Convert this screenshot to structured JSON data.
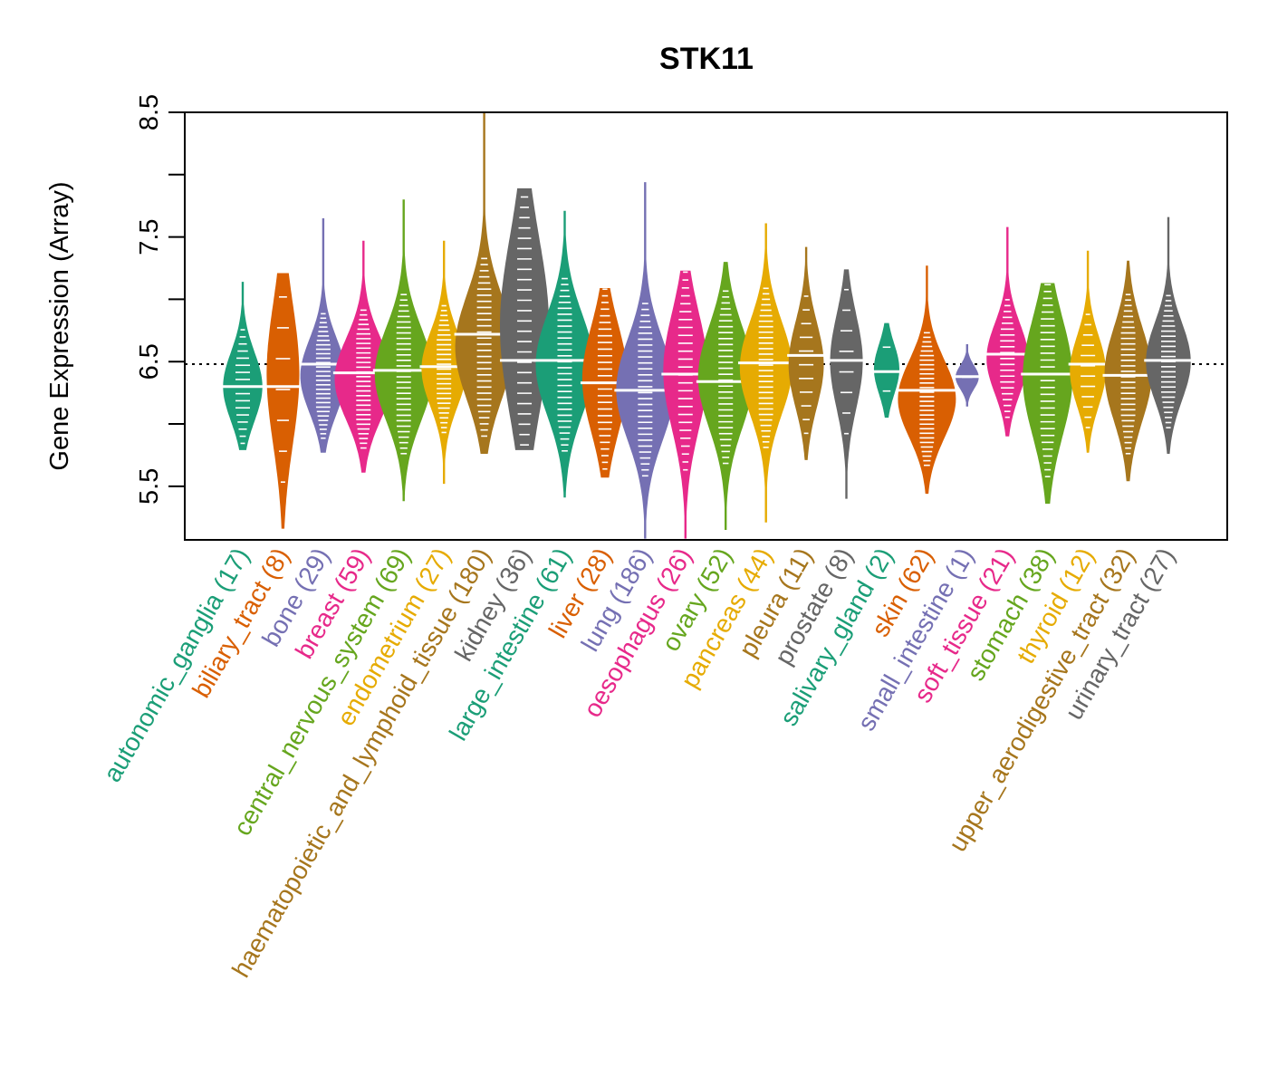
{
  "chart_data": {
    "type": "violin",
    "title": "STK11",
    "xlabel": "",
    "ylabel": "Gene Expression (Array)",
    "ylim": [
      5.07,
      8.5
    ],
    "yticks": [
      5.5,
      6.0,
      6.5,
      7.0,
      7.5,
      8.0,
      8.5
    ],
    "ytick_labels": [
      "5.5",
      "",
      "6.5",
      "",
      "7.5",
      "",
      "8.5"
    ],
    "reference_line": 6.48,
    "grid": false,
    "legend": "none",
    "groups": [
      {
        "name": "autonomic_ganglia",
        "n": 17,
        "label": "autonomic_ganglia (17)",
        "color": "#1B9E77",
        "min": 5.79,
        "max": 7.14,
        "median": 6.3,
        "q1": 6.08,
        "q3": 6.52
      },
      {
        "name": "biliary_tract",
        "n": 8,
        "label": "biliary_tract (8)",
        "color": "#D95F02",
        "min": 5.16,
        "max": 7.21,
        "median": 6.3,
        "q1": 5.95,
        "q3": 6.85
      },
      {
        "name": "bone",
        "n": 29,
        "label": "bone (29)",
        "color": "#7570B3",
        "min": 5.77,
        "max": 7.65,
        "median": 6.48,
        "q1": 6.15,
        "q3": 6.62
      },
      {
        "name": "breast",
        "n": 59,
        "label": "breast (59)",
        "color": "#E7298A",
        "min": 5.61,
        "max": 7.47,
        "median": 6.41,
        "q1": 6.1,
        "q3": 6.62
      },
      {
        "name": "central_nervous_system",
        "n": 69,
        "label": "central_nervous_system (69)",
        "color": "#66A61E",
        "min": 5.38,
        "max": 7.8,
        "median": 6.43,
        "q1": 6.1,
        "q3": 6.7
      },
      {
        "name": "endometrium",
        "n": 27,
        "label": "endometrium (27)",
        "color": "#E6AB02",
        "min": 5.52,
        "max": 7.47,
        "median": 6.46,
        "q1": 6.2,
        "q3": 6.68
      },
      {
        "name": "haematopoietic_and_lymphoid_tissue",
        "n": 180,
        "label": "haematopoietic_and_lymphoid_tissue (180)",
        "color": "#A6761D",
        "min": 5.76,
        "max": 8.5,
        "median": 6.72,
        "q1": 6.28,
        "q3": 6.95
      },
      {
        "name": "kidney",
        "n": 36,
        "label": "kidney (36)",
        "color": "#666666",
        "min": 5.79,
        "max": 7.89,
        "median": 6.51,
        "q1": 6.22,
        "q3": 7.35
      },
      {
        "name": "large_intestine",
        "n": 61,
        "label": "large_intestine (61)",
        "color": "#1B9E77",
        "min": 5.41,
        "max": 7.71,
        "median": 6.51,
        "q1": 6.15,
        "q3": 6.8
      },
      {
        "name": "liver",
        "n": 28,
        "label": "liver (28)",
        "color": "#D95F02",
        "min": 5.57,
        "max": 7.09,
        "median": 6.33,
        "q1": 6.02,
        "q3": 6.7
      },
      {
        "name": "lung",
        "n": 186,
        "label": "lung (186)",
        "color": "#7570B3",
        "min": 5.08,
        "max": 7.94,
        "median": 6.27,
        "q1": 5.95,
        "q3": 6.6
      },
      {
        "name": "oesophagus",
        "n": 26,
        "label": "oesophagus (26)",
        "color": "#E7298A",
        "min": 5.08,
        "max": 7.23,
        "median": 6.4,
        "q1": 6.05,
        "q3": 6.8
      },
      {
        "name": "ovary",
        "n": 52,
        "label": "ovary (52)",
        "color": "#66A61E",
        "min": 5.15,
        "max": 7.3,
        "median": 6.34,
        "q1": 6.05,
        "q3": 6.7
      },
      {
        "name": "pancreas",
        "n": 44,
        "label": "pancreas (44)",
        "color": "#E6AB02",
        "min": 5.21,
        "max": 7.61,
        "median": 6.49,
        "q1": 6.15,
        "q3": 6.75
      },
      {
        "name": "pleura",
        "n": 11,
        "label": "pleura (11)",
        "color": "#A6761D",
        "min": 5.71,
        "max": 7.42,
        "median": 6.55,
        "q1": 6.2,
        "q3": 6.75
      },
      {
        "name": "prostate",
        "n": 8,
        "label": "prostate (8)",
        "color": "#666666",
        "min": 5.4,
        "max": 7.24,
        "median": 6.51,
        "q1": 6.2,
        "q3": 6.8
      },
      {
        "name": "salivary_gland",
        "n": 2,
        "label": "salivary_gland (2)",
        "color": "#1B9E77",
        "min": 6.05,
        "max": 6.81,
        "median": 6.42,
        "q1": 6.28,
        "q3": 6.6
      },
      {
        "name": "skin",
        "n": 62,
        "label": "skin (62)",
        "color": "#D95F02",
        "min": 5.44,
        "max": 7.27,
        "median": 6.27,
        "q1": 5.95,
        "q3": 6.45
      },
      {
        "name": "small_intestine",
        "n": 1,
        "label": "small_intestine (1)",
        "color": "#7570B3",
        "min": 6.14,
        "max": 6.64,
        "median": 6.38,
        "q1": 6.3,
        "q3": 6.45
      },
      {
        "name": "soft_tissue",
        "n": 21,
        "label": "soft_tissue (21)",
        "color": "#E7298A",
        "min": 5.9,
        "max": 7.58,
        "median": 6.56,
        "q1": 6.3,
        "q3": 6.75
      },
      {
        "name": "stomach",
        "n": 38,
        "label": "stomach (38)",
        "color": "#66A61E",
        "min": 5.36,
        "max": 7.13,
        "median": 6.4,
        "q1": 6.0,
        "q3": 6.75
      },
      {
        "name": "thyroid",
        "n": 12,
        "label": "thyroid (12)",
        "color": "#E6AB02",
        "min": 5.77,
        "max": 7.39,
        "median": 6.48,
        "q1": 6.2,
        "q3": 6.65
      },
      {
        "name": "upper_aerodigestive_tract",
        "n": 32,
        "label": "upper_aerodigestive_tract (32)",
        "color": "#A6761D",
        "min": 5.54,
        "max": 7.31,
        "median": 6.39,
        "q1": 6.1,
        "q3": 6.7
      },
      {
        "name": "urinary_tract",
        "n": 27,
        "label": "urinary_tract (27)",
        "color": "#666666",
        "min": 5.76,
        "max": 7.66,
        "median": 6.51,
        "q1": 6.25,
        "q3": 6.75
      }
    ]
  }
}
